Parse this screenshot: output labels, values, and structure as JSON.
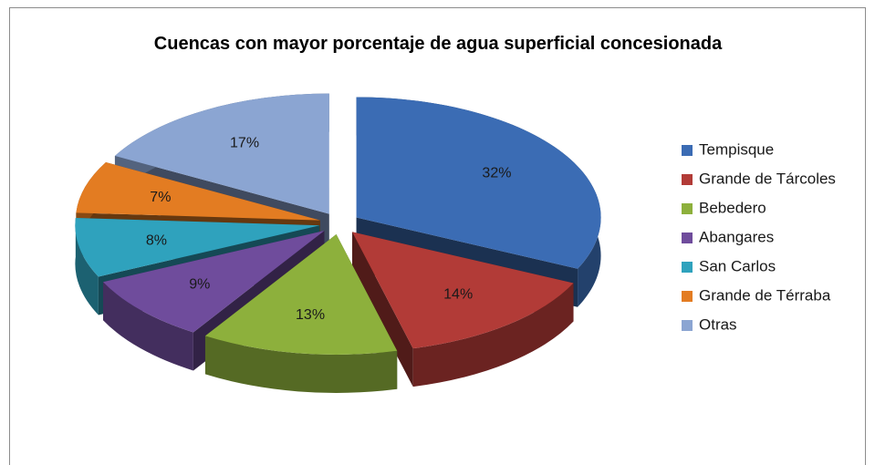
{
  "chart_data": {
    "type": "pie",
    "title": "Cuencas con mayor porcentaje de agua superficial concesionada",
    "categories": [
      "Tempisque",
      "Grande de Tárcoles",
      "Bebedero",
      "Abangares",
      "San Carlos",
      "Grande de Térraba",
      "Otras"
    ],
    "values": [
      32,
      14,
      13,
      9,
      8,
      7,
      17
    ],
    "value_labels": [
      "32%",
      "14%",
      "13%",
      "9%",
      "8%",
      "7%",
      "17%"
    ],
    "colors": [
      "#3b6cb4",
      "#b23b37",
      "#8db03c",
      "#6f4c9c",
      "#2fa2bd",
      "#e37c22",
      "#8ba5d2"
    ],
    "legend": "right"
  }
}
